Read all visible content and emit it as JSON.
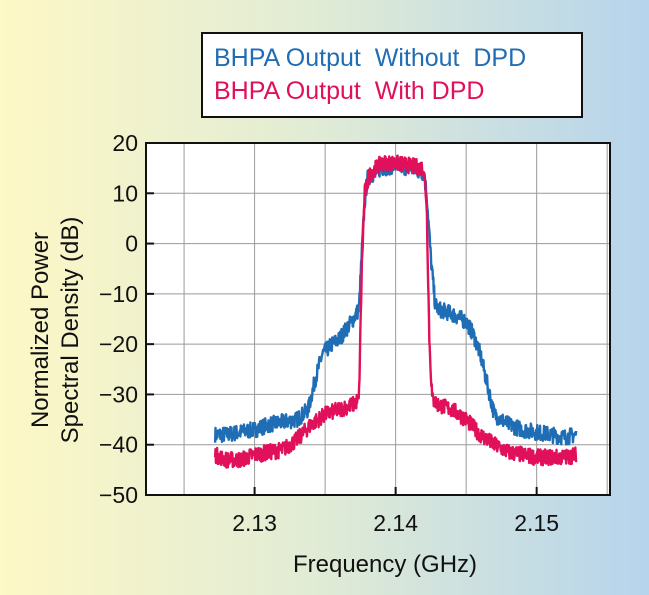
{
  "chart_data": {
    "type": "line",
    "title": "",
    "xlabel": "Frequency (GHz)",
    "ylabel_lines": [
      "Normalized Power",
      "Spectral Density (dB)"
    ],
    "xlim": [
      2.1223,
      2.1552
    ],
    "ylim": [
      -50,
      20
    ],
    "xticks": [
      2.13,
      2.14,
      2.15
    ],
    "xtick_labels": [
      "2.13",
      "2.14",
      "2.15"
    ],
    "yticks": [
      20,
      10,
      0,
      -10,
      -20,
      -30,
      -40,
      -50
    ],
    "ytick_labels": [
      "20",
      "10",
      "0",
      "−10",
      "−20",
      "−30",
      "−40",
      "−50"
    ],
    "grid": true,
    "legend_position": "top-right",
    "series": [
      {
        "name": "BHPA Output  Without  DPD",
        "color": "#1f6db4",
        "noise": 1.6,
        "x": [
          2.1272,
          2.128,
          2.129,
          2.13,
          2.131,
          2.132,
          2.133,
          2.1338,
          2.1343,
          2.1348,
          2.1355,
          2.136,
          2.1365,
          2.137,
          2.1374,
          2.1376,
          2.1378,
          2.138,
          2.139,
          2.14,
          2.141,
          2.142,
          2.1422,
          2.1425,
          2.1428,
          2.143,
          2.144,
          2.145,
          2.1455,
          2.146,
          2.1465,
          2.147,
          2.148,
          2.149,
          2.15,
          2.151,
          2.152,
          2.1528
        ],
        "y": [
          -38,
          -38,
          -37.5,
          -37,
          -36,
          -35.5,
          -35,
          -33,
          -27,
          -22,
          -20,
          -19,
          -17,
          -15,
          -13,
          -2,
          8,
          13,
          15,
          15.5,
          15,
          14,
          10,
          -3,
          -12,
          -13,
          -14,
          -15.5,
          -18,
          -22,
          -28,
          -34,
          -36,
          -37,
          -37.5,
          -38,
          -38.5,
          -38
        ]
      },
      {
        "name": "BHPA Output  With DPD",
        "color": "#e0105a",
        "noise": 1.6,
        "x": [
          2.1272,
          2.128,
          2.129,
          2.13,
          2.131,
          2.132,
          2.133,
          2.134,
          2.135,
          2.136,
          2.137,
          2.1374,
          2.1376,
          2.1378,
          2.1382,
          2.139,
          2.14,
          2.141,
          2.142,
          2.1422,
          2.1424,
          2.1426,
          2.143,
          2.144,
          2.145,
          2.146,
          2.147,
          2.148,
          2.149,
          2.15,
          2.151,
          2.152,
          2.1528
        ],
        "y": [
          -42,
          -43,
          -43,
          -42,
          -41.5,
          -41,
          -39,
          -36,
          -34,
          -33,
          -32,
          -31,
          -5,
          10,
          14,
          16,
          16,
          15.5,
          15,
          8,
          -20,
          -31,
          -32,
          -33,
          -35,
          -38,
          -40,
          -41.5,
          -42,
          -42.5,
          -42.5,
          -42.5,
          -42
        ]
      }
    ]
  },
  "legend": {
    "lines": [
      {
        "text": "BHPA Output  Without  DPD",
        "color": "#1f6db4"
      },
      {
        "text": "BHPA Output  With DPD",
        "color": "#e0105a"
      }
    ]
  }
}
